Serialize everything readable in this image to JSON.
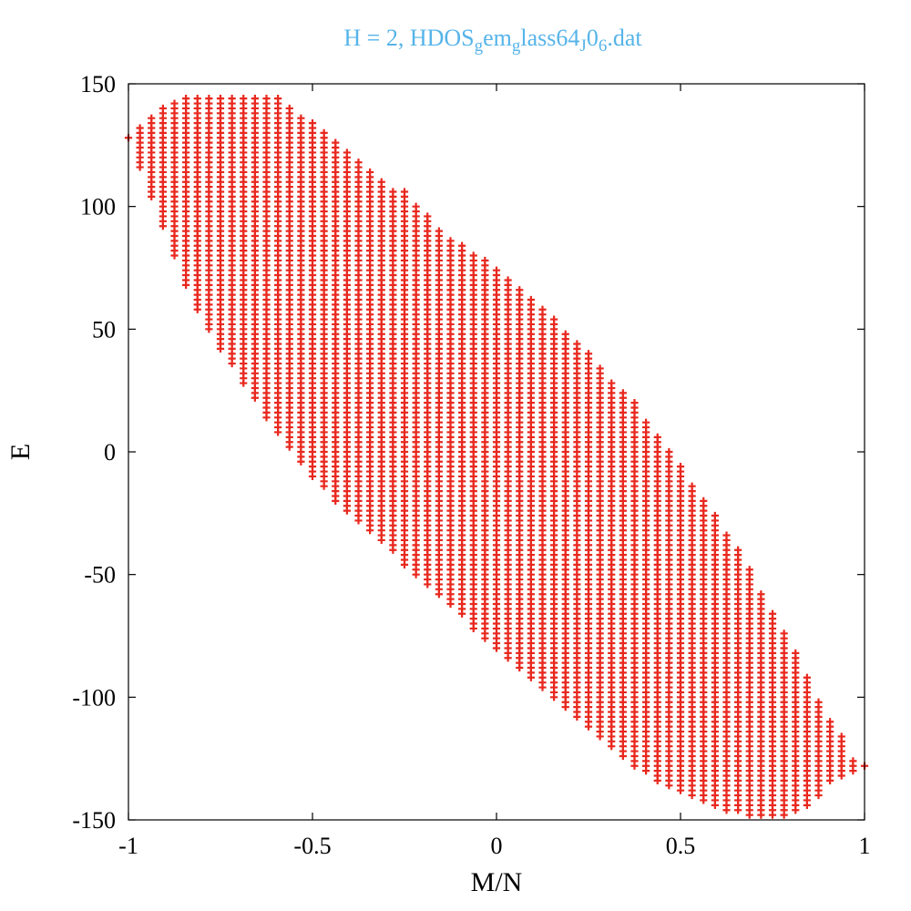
{
  "chart_data": {
    "type": "scatter",
    "title_main": "H = 2, HDOS",
    "title_parts": [
      {
        "text": "H = 2, HDOS",
        "sub": false
      },
      {
        "text": "g",
        "sub": true
      },
      {
        "text": "em",
        "sub": false
      },
      {
        "text": "g",
        "sub": true
      },
      {
        "text": "lass64",
        "sub": false
      },
      {
        "text": "J",
        "sub": true
      },
      {
        "text": "0",
        "sub": false
      },
      {
        "text": "6",
        "sub": true
      },
      {
        "text": ".dat",
        "sub": false
      }
    ],
    "xlabel": "M/N",
    "ylabel": "E",
    "xlim": [
      -1,
      1
    ],
    "ylim": [
      -150,
      150
    ],
    "xticks": [
      "-1",
      "-0.5",
      "0",
      "0.5",
      "1"
    ],
    "xtick_values": [
      -1,
      -0.5,
      0,
      0.5,
      1
    ],
    "yticks": [
      "150",
      "100",
      "50",
      "0",
      "-50",
      "-100",
      "-150"
    ],
    "ytick_values": [
      150,
      100,
      50,
      0,
      -50,
      -100,
      -150
    ],
    "grid": false,
    "legend": "none",
    "marker_color": "#e8281e",
    "marker": "plus",
    "m_step": 0.03125,
    "e_step": 2,
    "columns": [
      {
        "m": -1.0,
        "emin": 128,
        "emax": 128
      },
      {
        "m": -0.96875,
        "emin": 116,
        "emax": 132
      },
      {
        "m": -0.9375,
        "emin": 104,
        "emax": 136
      },
      {
        "m": -0.90625,
        "emin": 92,
        "emax": 140
      },
      {
        "m": -0.875,
        "emin": 80,
        "emax": 142
      },
      {
        "m": -0.84375,
        "emin": 68,
        "emax": 144
      },
      {
        "m": -0.8125,
        "emin": 58,
        "emax": 144
      },
      {
        "m": -0.78125,
        "emin": 50,
        "emax": 144
      },
      {
        "m": -0.75,
        "emin": 42,
        "emax": 144
      },
      {
        "m": -0.71875,
        "emin": 36,
        "emax": 144
      },
      {
        "m": -0.6875,
        "emin": 28,
        "emax": 144
      },
      {
        "m": -0.65625,
        "emin": 22,
        "emax": 144
      },
      {
        "m": -0.625,
        "emin": 14,
        "emax": 144
      },
      {
        "m": -0.59375,
        "emin": 8,
        "emax": 144
      },
      {
        "m": -0.5625,
        "emin": 2,
        "emax": 140
      },
      {
        "m": -0.53125,
        "emin": -4,
        "emax": 136
      },
      {
        "m": -0.5,
        "emin": -10,
        "emax": 134
      },
      {
        "m": -0.46875,
        "emin": -14,
        "emax": 130
      },
      {
        "m": -0.4375,
        "emin": -20,
        "emax": 126
      },
      {
        "m": -0.40625,
        "emin": -24,
        "emax": 122
      },
      {
        "m": -0.375,
        "emin": -28,
        "emax": 118
      },
      {
        "m": -0.34375,
        "emin": -32,
        "emax": 114
      },
      {
        "m": -0.3125,
        "emin": -36,
        "emax": 110
      },
      {
        "m": -0.28125,
        "emin": -40,
        "emax": 106
      },
      {
        "m": -0.25,
        "emin": -46,
        "emax": 106
      },
      {
        "m": -0.21875,
        "emin": -50,
        "emax": 100
      },
      {
        "m": -0.1875,
        "emin": -54,
        "emax": 96
      },
      {
        "m": -0.15625,
        "emin": -58,
        "emax": 90
      },
      {
        "m": -0.125,
        "emin": -62,
        "emax": 86
      },
      {
        "m": -0.09375,
        "emin": -66,
        "emax": 84
      },
      {
        "m": -0.0625,
        "emin": -72,
        "emax": 80
      },
      {
        "m": -0.03125,
        "emin": -76,
        "emax": 78
      },
      {
        "m": 0.0,
        "emin": -80,
        "emax": 74
      },
      {
        "m": 0.03125,
        "emin": -84,
        "emax": 70
      },
      {
        "m": 0.0625,
        "emin": -88,
        "emax": 66
      },
      {
        "m": 0.09375,
        "emin": -92,
        "emax": 62
      },
      {
        "m": 0.125,
        "emin": -96,
        "emax": 58
      },
      {
        "m": 0.15625,
        "emin": -100,
        "emax": 54
      },
      {
        "m": 0.1875,
        "emin": -104,
        "emax": 48
      },
      {
        "m": 0.21875,
        "emin": -108,
        "emax": 44
      },
      {
        "m": 0.25,
        "emin": -112,
        "emax": 40
      },
      {
        "m": 0.28125,
        "emin": -116,
        "emax": 34
      },
      {
        "m": 0.3125,
        "emin": -120,
        "emax": 28
      },
      {
        "m": 0.34375,
        "emin": -124,
        "emax": 24
      },
      {
        "m": 0.375,
        "emin": -128,
        "emax": 20
      },
      {
        "m": 0.40625,
        "emin": -130,
        "emax": 12
      },
      {
        "m": 0.4375,
        "emin": -134,
        "emax": 6
      },
      {
        "m": 0.46875,
        "emin": -136,
        "emax": 0
      },
      {
        "m": 0.5,
        "emin": -138,
        "emax": -6
      },
      {
        "m": 0.53125,
        "emin": -140,
        "emax": -14
      },
      {
        "m": 0.5625,
        "emin": -142,
        "emax": -20
      },
      {
        "m": 0.59375,
        "emin": -144,
        "emax": -26
      },
      {
        "m": 0.625,
        "emin": -146,
        "emax": -34
      },
      {
        "m": 0.65625,
        "emin": -146,
        "emax": -40
      },
      {
        "m": 0.6875,
        "emin": -148,
        "emax": -48
      },
      {
        "m": 0.71875,
        "emin": -148,
        "emax": -58
      },
      {
        "m": 0.75,
        "emin": -148,
        "emax": -66
      },
      {
        "m": 0.78125,
        "emin": -148,
        "emax": -74
      },
      {
        "m": 0.8125,
        "emin": -146,
        "emax": -82
      },
      {
        "m": 0.84375,
        "emin": -144,
        "emax": -92
      },
      {
        "m": 0.875,
        "emin": -140,
        "emax": -102
      },
      {
        "m": 0.90625,
        "emin": -134,
        "emax": -110
      },
      {
        "m": 0.9375,
        "emin": -132,
        "emax": -116
      },
      {
        "m": 0.96875,
        "emin": -130,
        "emax": -126
      },
      {
        "m": 1.0,
        "emin": -128,
        "emax": -128
      }
    ]
  }
}
